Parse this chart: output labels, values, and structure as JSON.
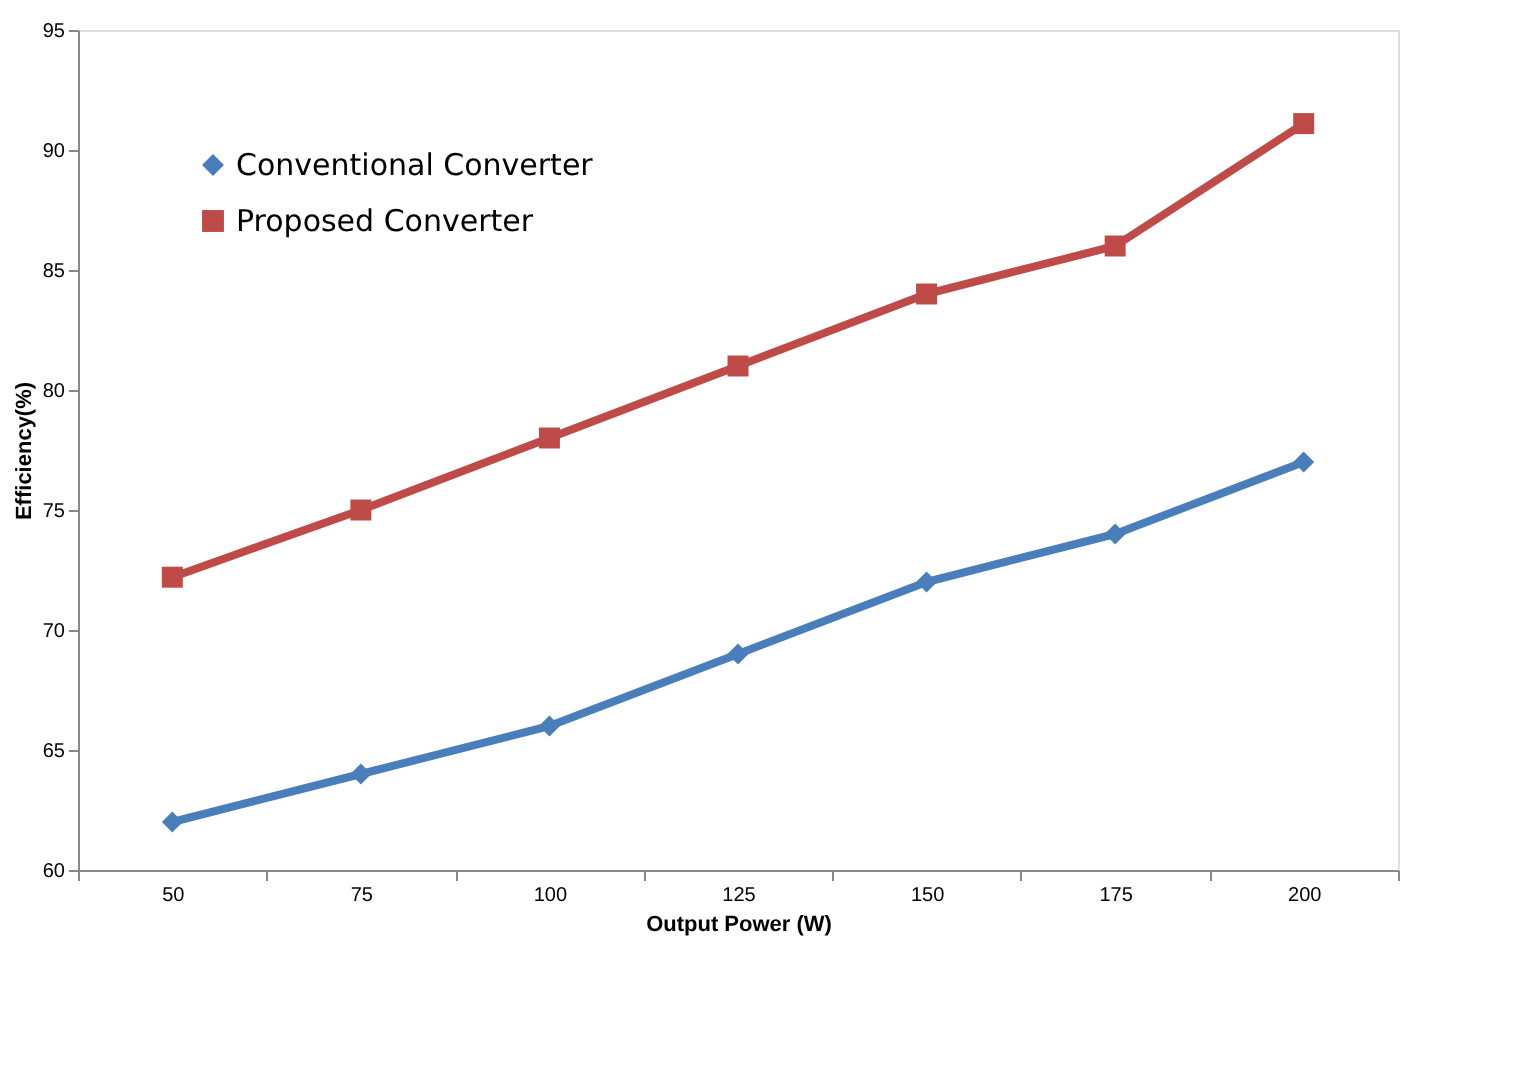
{
  "chart_data": {
    "type": "line",
    "xlabel": "Output Power (W)",
    "ylabel": "Efficiency(%)",
    "categories": [
      "50",
      "75",
      "100",
      "125",
      "150",
      "175",
      "200"
    ],
    "series": [
      {
        "name": "Conventional Converter",
        "color": "#4a7ebb",
        "marker": "diamond",
        "values": [
          62,
          64,
          66,
          69,
          72,
          74,
          77
        ]
      },
      {
        "name": "Proposed Converter",
        "color": "#be4b48",
        "marker": "square",
        "values": [
          72.2,
          75,
          78,
          81,
          84,
          86,
          91.1
        ]
      }
    ],
    "ylim": [
      60,
      95
    ],
    "yticks": [
      60,
      65,
      70,
      75,
      80,
      85,
      90,
      95
    ],
    "grid": false,
    "legend": "top left",
    "line_style": "solid"
  }
}
